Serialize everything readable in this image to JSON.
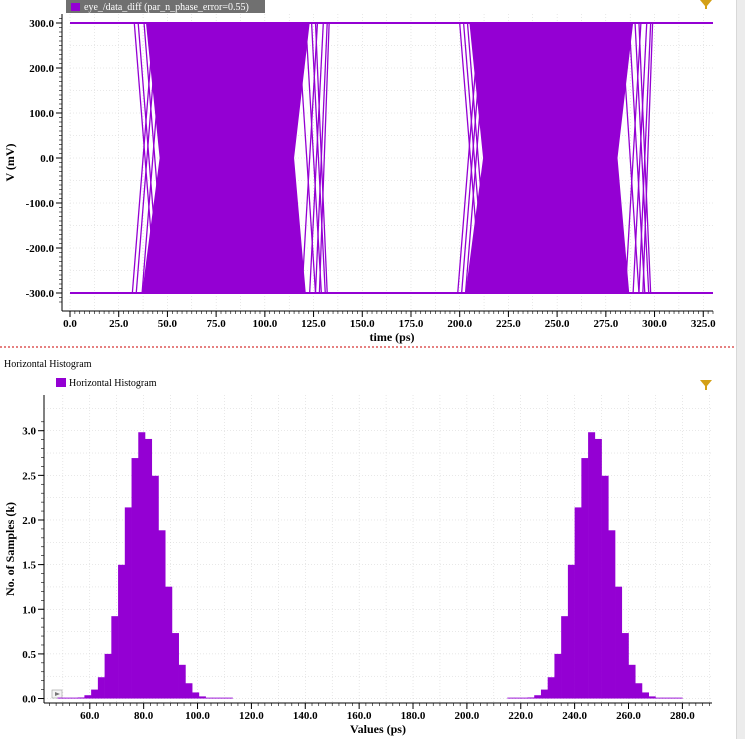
{
  "colors": {
    "signal": "#9400d3",
    "separator": "#cc0000",
    "grid": "#d0d0d0",
    "filter_icon": "#d4a017"
  },
  "chart_data": [
    {
      "type": "line",
      "subtype": "eye-diagram",
      "series": [
        {
          "name": "eye_/data_diff (par_n_phase_error=0.55)"
        }
      ],
      "xlabel": "time (ps)",
      "ylabel": "V (mV)",
      "xlim": [
        0,
        330
      ],
      "ylim": [
        -340,
        320
      ],
      "x_ticks": [
        "0.0",
        "25.0",
        "50.0",
        "75.0",
        "100.0",
        "125.0",
        "150.0",
        "175.0",
        "200.0",
        "225.0",
        "250.0",
        "275.0",
        "300.0",
        "325.0"
      ],
      "y_ticks": [
        "300.0",
        "200.0",
        "100.0",
        "0.0",
        "-100.0",
        "-200.0",
        "-300.0"
      ],
      "levels_mV": [
        300,
        -300
      ],
      "crossings_ps": [
        {
          "outer_start": 32,
          "core_start": 37,
          "core_end": 121,
          "outer_end": 132
        },
        {
          "outer_start": 199,
          "core_start": 203,
          "core_end": 287,
          "outer_end": 298
        }
      ],
      "grid": true
    },
    {
      "type": "bar",
      "subtype": "histogram",
      "title": "Horizontal Histogram",
      "series": [
        {
          "name": "Horizontal Histogram"
        }
      ],
      "xlabel": "Values (ps)",
      "ylabel": "No. of Samples (k)",
      "xlim": [
        43,
        291
      ],
      "ylim": [
        -0.05,
        3.4
      ],
      "x_ticks": [
        "60.0",
        "80.0",
        "100.0",
        "120.0",
        "140.0",
        "160.0",
        "180.0",
        "200.0",
        "220.0",
        "240.0",
        "260.0",
        "280.0"
      ],
      "y_ticks": [
        "0.0",
        "0.5",
        "1.0",
        "1.5",
        "2.0",
        "2.5",
        "3.0"
      ],
      "peaks": [
        {
          "center": 80,
          "height": 3.0,
          "sigma": 7.0
        },
        {
          "center": 247,
          "height": 3.0,
          "sigma": 7.0
        }
      ],
      "bin_width": 2.5,
      "grid": true
    }
  ]
}
